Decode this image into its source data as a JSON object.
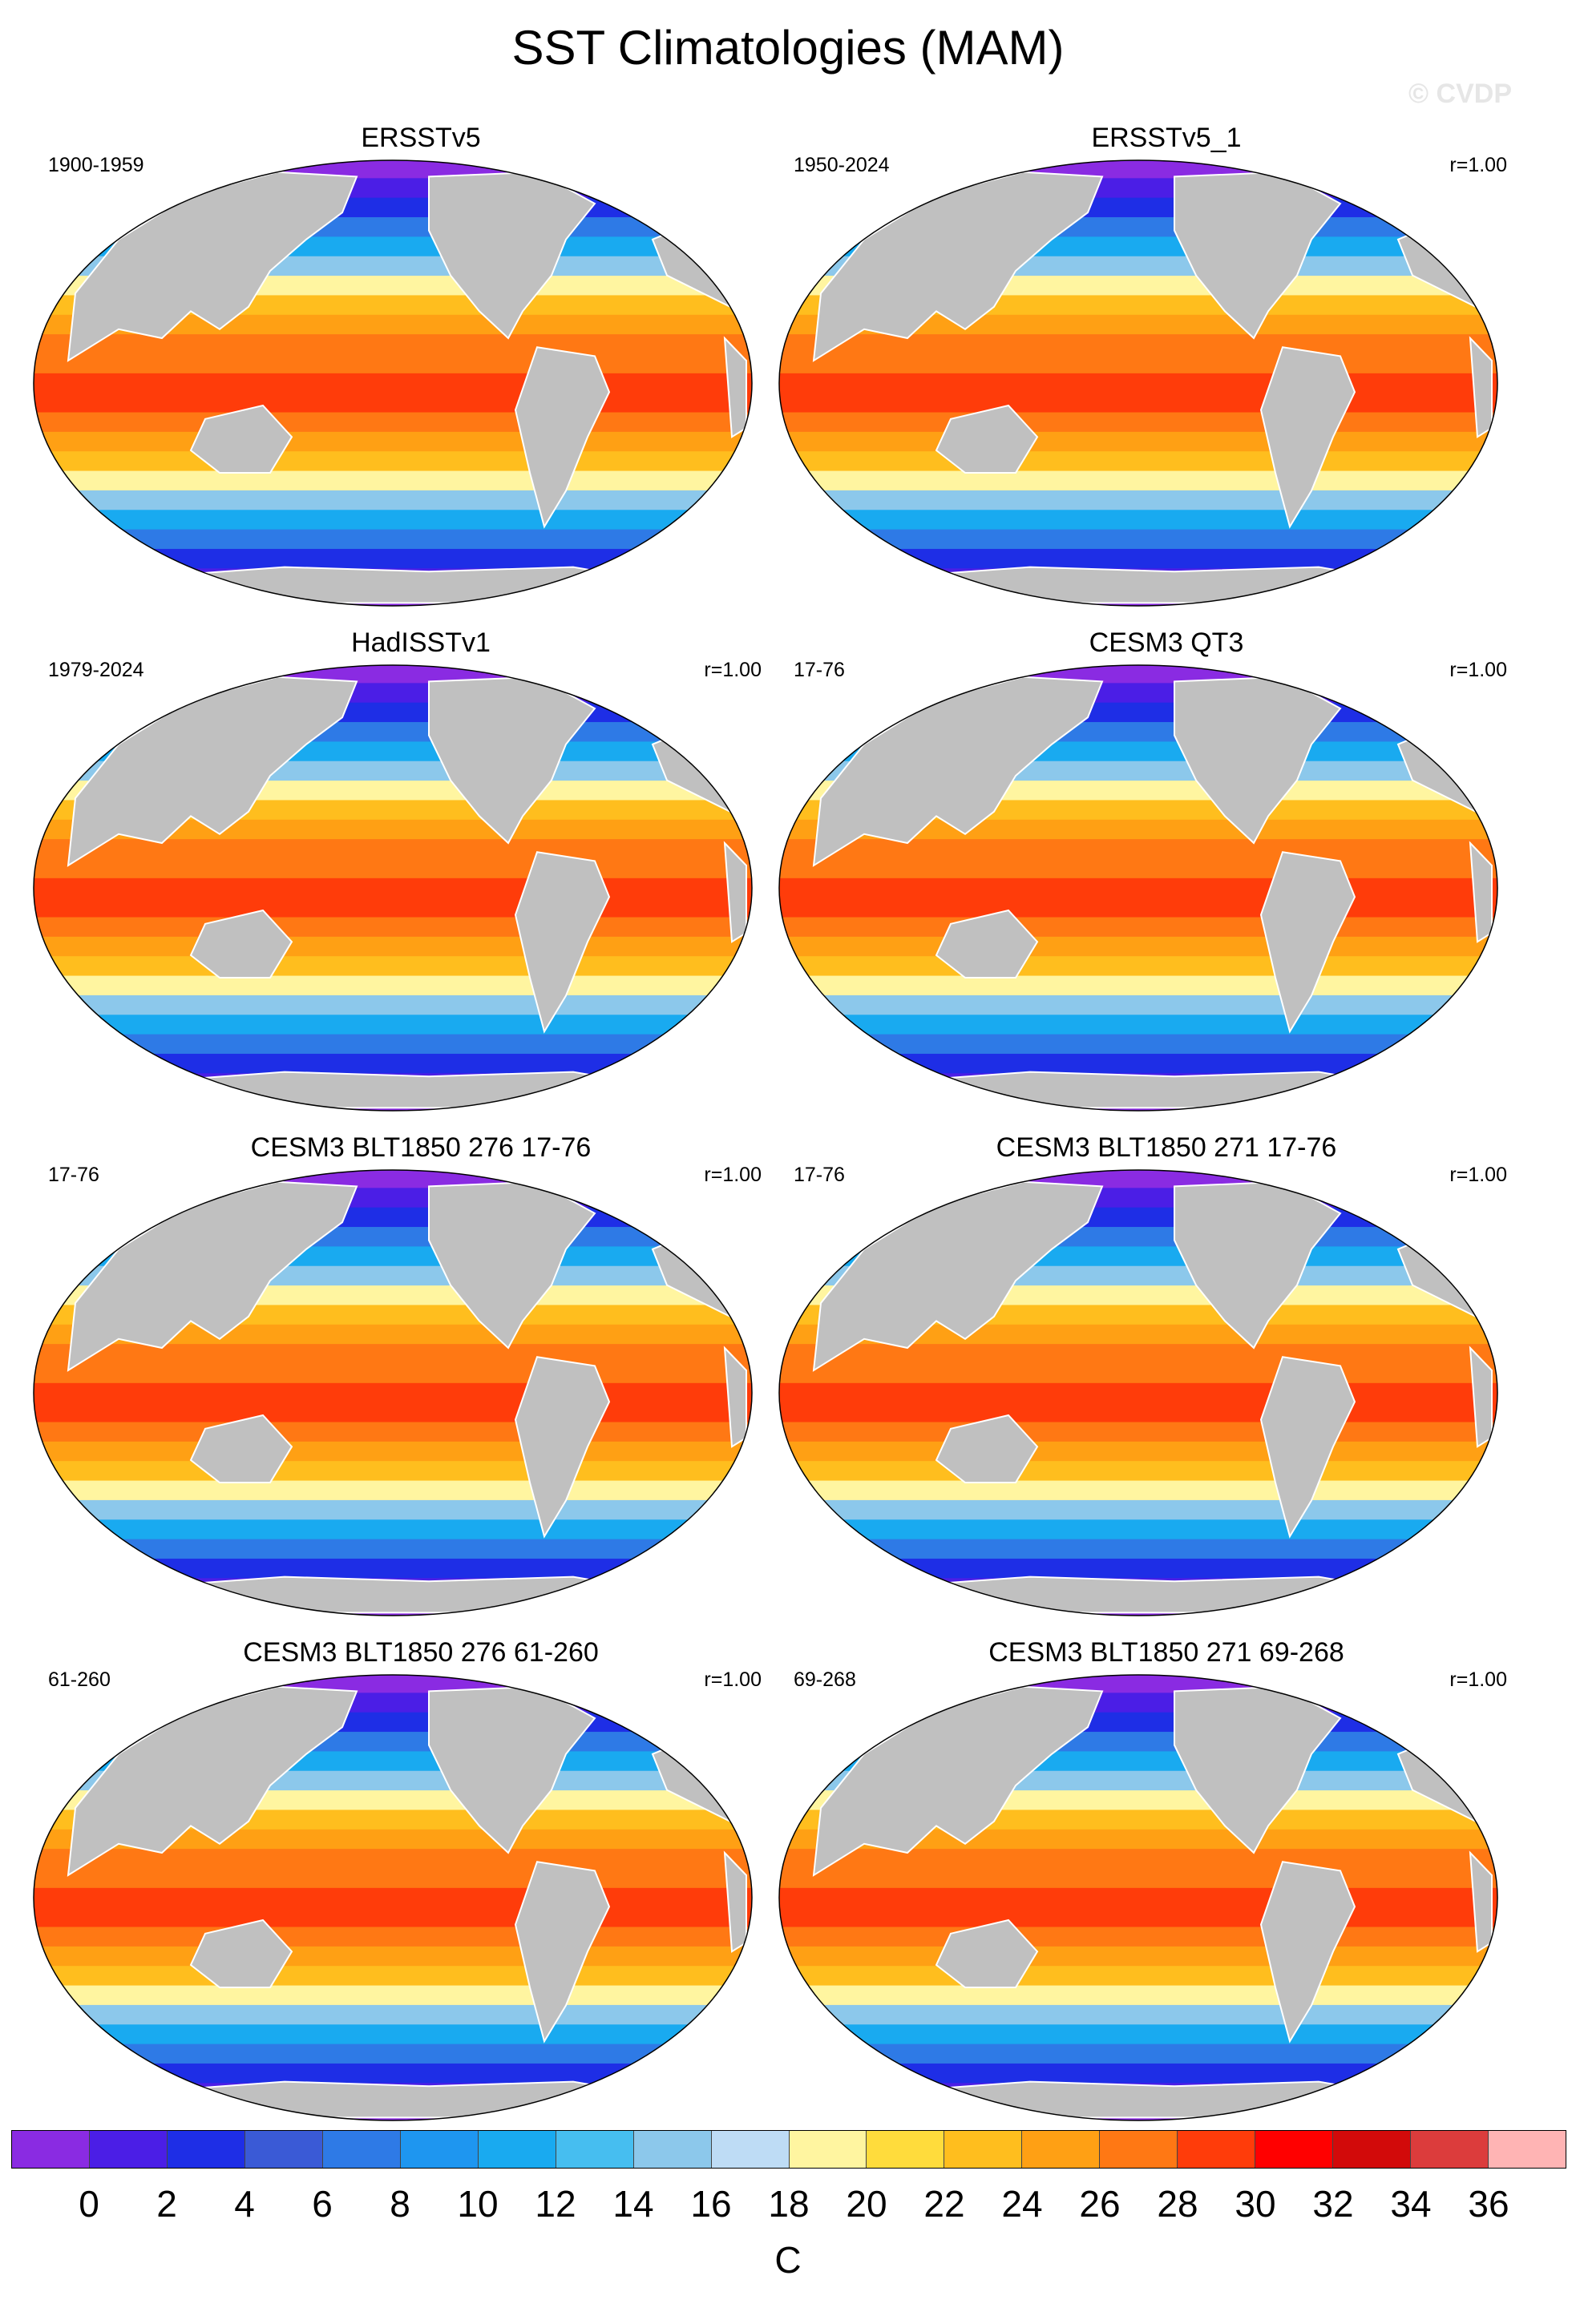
{
  "title": "SST Climatologies (MAM)",
  "watermark": "© CVDP",
  "units": "C",
  "panels": [
    {
      "title": "ERSSTv5",
      "years": "1900-1959",
      "corr": ""
    },
    {
      "title": "ERSSTv5_1",
      "years": "1950-2024",
      "corr": "r=1.00"
    },
    {
      "title": "HadISSTv1",
      "years": "1979-2024",
      "corr": "r=1.00"
    },
    {
      "title": "CESM3 QT3",
      "years": "17-76",
      "corr": "r=1.00"
    },
    {
      "title": "CESM3 BLT1850 276 17-76",
      "years": "17-76",
      "corr": "r=1.00"
    },
    {
      "title": "CESM3 BLT1850 271 17-76",
      "years": "17-76",
      "corr": "r=1.00"
    },
    {
      "title": "CESM3 BLT1850 276 61-260",
      "years": "61-260",
      "corr": "r=1.00"
    },
    {
      "title": "CESM3 BLT1850 271 69-268",
      "years": "69-268",
      "corr": "r=1.00"
    }
  ],
  "colorbar": {
    "labels": [
      "0",
      "2",
      "4",
      "6",
      "8",
      "10",
      "12",
      "14",
      "16",
      "18",
      "20",
      "22",
      "24",
      "26",
      "28",
      "30",
      "32",
      "34",
      "36"
    ],
    "colors": [
      "#8a2be2",
      "#4b1ee6",
      "#1e2ee6",
      "#3a5ad6",
      "#2e7ae6",
      "#1e96f0",
      "#19aaf0",
      "#46bef0",
      "#8cc8eb",
      "#bedcf5",
      "#fff5a0",
      "#ffdc3c",
      "#ffbe1e",
      "#ffa014",
      "#ff7814",
      "#ff3c0a",
      "#ff0000",
      "#d20a0a",
      "#dc3c3c",
      "#ffb4b4"
    ]
  },
  "land_color": "#c0c0c0"
}
